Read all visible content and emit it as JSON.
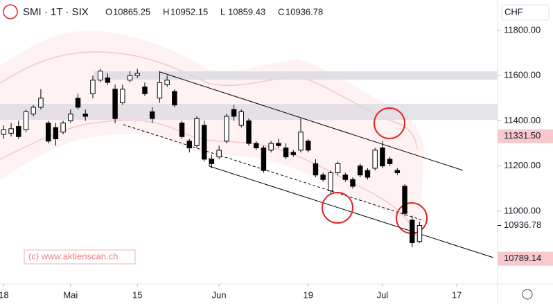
{
  "chart_data": {
    "type": "candlestick",
    "title": "SMI · 1T · SIX",
    "ohlc_letters": [
      "O",
      "H",
      "L",
      "C"
    ],
    "currency": "CHF",
    "watermark": "(c) www.aktienscan.ch",
    "categories": [
      null,
      null,
      null,
      null,
      null,
      null,
      null,
      null,
      null,
      null,
      null,
      null,
      null,
      null,
      null,
      null,
      null,
      null,
      null,
      null,
      null,
      null,
      null,
      null,
      null,
      null,
      null,
      null,
      null,
      null,
      null,
      null,
      null,
      null,
      null,
      null,
      null,
      null,
      null,
      null,
      null,
      null,
      null,
      null,
      null,
      null,
      null,
      null,
      null,
      null,
      null,
      null,
      null,
      null,
      null,
      null,
      null
    ],
    "open": [
      11340,
      11345,
      11375,
      11360,
      11430,
      11460,
      11390,
      11370,
      11350,
      11400,
      11500,
      11430,
      11520,
      11580,
      11590,
      11540,
      11480,
      11580,
      11600,
      11550,
      11440,
      11500,
      11560,
      11530,
      11390,
      11310,
      11290,
      11380,
      11230,
      11240,
      11310,
      11450,
      11380,
      11400,
      11300,
      11280,
      11270,
      11300,
      11280,
      11260,
      11270,
      11310,
      11210,
      11160,
      11090,
      11170,
      11160,
      11140,
      11200,
      11180,
      11190,
      11280,
      11230,
      11180,
      11110,
      10960,
      10865.25
    ],
    "high": [
      11380,
      11390,
      11400,
      11450,
      11470,
      11540,
      11400,
      11390,
      11400,
      11450,
      11520,
      11450,
      11600,
      11630,
      11610,
      11560,
      11560,
      11620,
      11630,
      11570,
      11460,
      11620,
      11600,
      11540,
      11400,
      11320,
      11420,
      11400,
      11250,
      11290,
      11430,
      11470,
      11450,
      11410,
      11310,
      11290,
      11310,
      11320,
      11300,
      11270,
      11410,
      11320,
      11230,
      11170,
      11180,
      11220,
      11170,
      11150,
      11210,
      11190,
      11280,
      11310,
      11240,
      11190,
      11120,
      10980,
      10952.15
    ],
    "low": [
      11320,
      11330,
      11320,
      11350,
      11420,
      11450,
      11300,
      11290,
      11340,
      11390,
      11450,
      11400,
      11500,
      11570,
      11560,
      11390,
      11470,
      11570,
      11590,
      11510,
      11390,
      11480,
      11550,
      11460,
      11320,
      11260,
      11280,
      11220,
      11190,
      11230,
      11300,
      11400,
      11370,
      11290,
      11270,
      11170,
      11260,
      11280,
      11230,
      11240,
      11260,
      11260,
      11150,
      11130,
      11080,
      11160,
      11130,
      11100,
      11150,
      11140,
      11180,
      11190,
      11200,
      11160,
      10980,
      10840,
      10859.43
    ],
    "close": [
      11360,
      11365,
      11330,
      11440,
      11460,
      11500,
      11310,
      11320,
      11390,
      11430,
      11460,
      11420,
      11580,
      11620,
      11570,
      11410,
      11540,
      11600,
      11610,
      11520,
      11410,
      11570,
      11580,
      11470,
      11330,
      11280,
      11410,
      11230,
      11210,
      11270,
      11420,
      11420,
      11440,
      11300,
      11280,
      11180,
      11300,
      11290,
      11240,
      11250,
      11350,
      11270,
      11160,
      11140,
      11170,
      11210,
      11140,
      11110,
      11160,
      11150,
      11270,
      11200,
      11210,
      11170,
      10990,
      10860,
      10936.78
    ],
    "up_color": "#ffffff",
    "down_color": "#000000",
    "xlim": [
      -0.5,
      66.5
    ],
    "xticks": [
      {
        "value": 0,
        "label": "18"
      },
      {
        "value": 9,
        "label": "Mai"
      },
      {
        "value": 18,
        "label": "15"
      },
      {
        "value": 29,
        "label": "Jun"
      },
      {
        "value": 41,
        "label": "19"
      },
      {
        "value": 51,
        "label": "Jul"
      },
      {
        "value": 61,
        "label": "17"
      }
    ],
    "ylim": [
      10693,
      11935
    ],
    "yticks": [
      {
        "value": 11000,
        "label": "11000.00"
      },
      {
        "value": 11200,
        "label": "11200.00"
      },
      {
        "value": 11400,
        "label": "11400.00"
      },
      {
        "value": 11600,
        "label": "11600.00"
      },
      {
        "value": 11800,
        "label": "11800.00"
      }
    ],
    "price_labels": [
      {
        "value": 11331.5,
        "label": "11331.50",
        "boxed": true
      },
      {
        "value": 10936.78,
        "boxed": false
      },
      {
        "value": 10789.14,
        "boxed": true
      }
    ]
  }
}
